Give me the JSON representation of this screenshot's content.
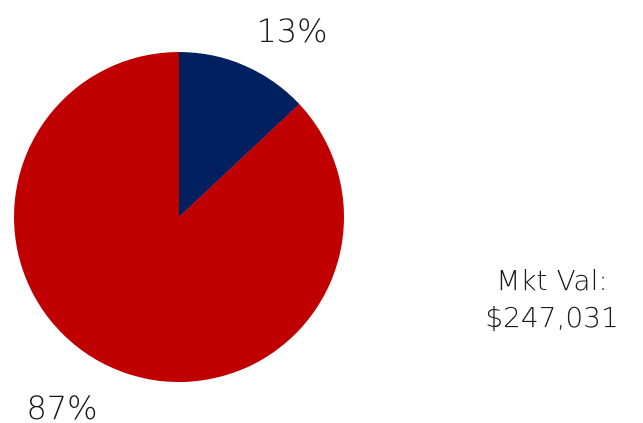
{
  "chart_data": {
    "type": "pie",
    "slices": [
      {
        "label": "13%",
        "value": 13,
        "color": "#002060"
      },
      {
        "label": "87%",
        "value": 87,
        "color": "#C00000"
      }
    ]
  },
  "market_value": {
    "label": "Mkt Val:",
    "value": "$247,031"
  }
}
